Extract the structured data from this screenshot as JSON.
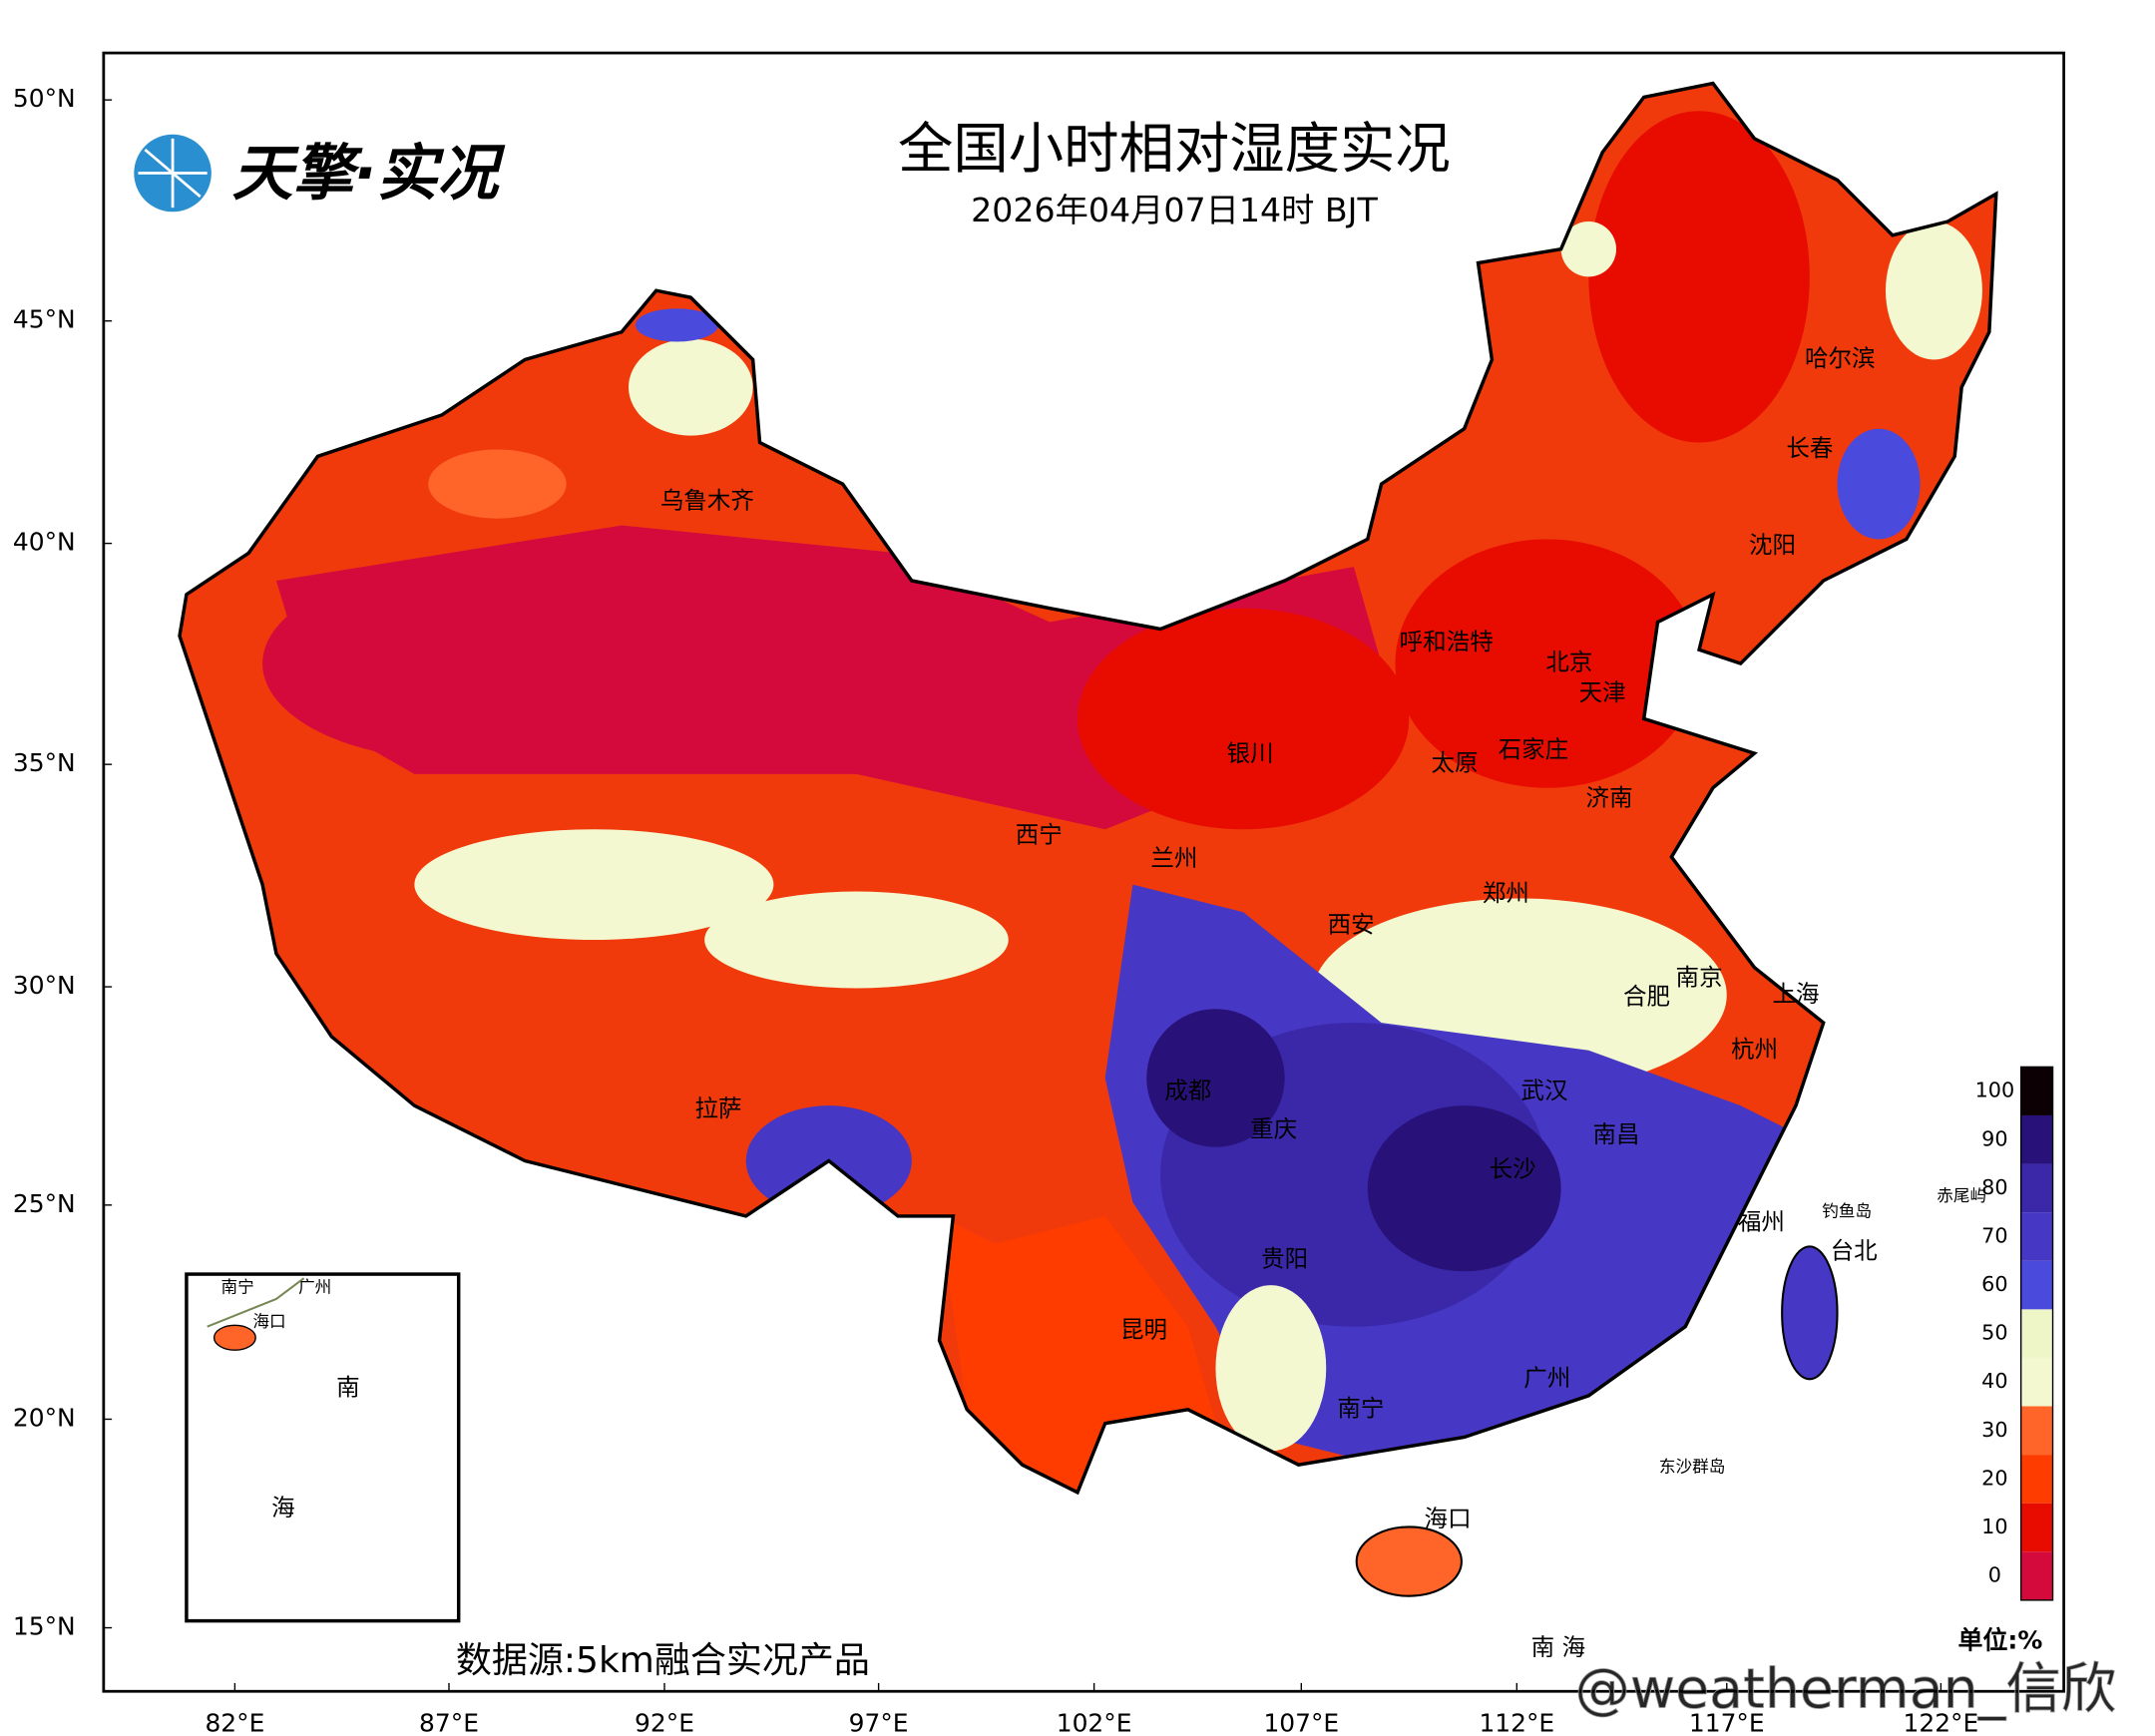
{
  "header": {
    "logo": "天擎·实况",
    "title": "全国小时相对湿度实况",
    "subtitle": "2026年04月07日14时 BJT"
  },
  "axes": {
    "lat_labels": [
      "50°N",
      "45°N",
      "40°N",
      "35°N",
      "30°N",
      "25°N",
      "20°N",
      "15°N"
    ],
    "lon_labels": [
      "82°E",
      "87°E",
      "92°E",
      "97°E",
      "102°E",
      "107°E",
      "112°E",
      "117°E",
      "122°E"
    ]
  },
  "cities": [
    "乌鲁木齐",
    "呼和浩特",
    "北京",
    "天津",
    "石家庄",
    "太原",
    "银川",
    "济南",
    "西宁",
    "兰州",
    "郑州",
    "西安",
    "南京",
    "合肥",
    "上海",
    "杭州",
    "武汉",
    "成都",
    "重庆",
    "南昌",
    "长沙",
    "拉萨",
    "福州",
    "台北",
    "贵阳",
    "昆明",
    "广州",
    "南宁",
    "海口",
    "哈尔滨",
    "长春",
    "沈阳"
  ],
  "islands": [
    "钓鱼岛",
    "赤尾屿",
    "东沙群岛",
    "南 海"
  ],
  "inset": [
    "南宁",
    "广州",
    "海口",
    "南",
    "海"
  ],
  "colorbar": {
    "ticks": [
      0,
      10,
      20,
      30,
      40,
      50,
      60,
      70,
      80,
      90,
      100
    ],
    "colors": [
      "#d40a3c",
      "#e80c00",
      "#ff3c00",
      "#ff6428",
      "#f4f8d0",
      "#eef6c8",
      "#4a4adc",
      "#4638c4",
      "#3a28a8",
      "#28127a",
      "#0c0004"
    ],
    "unit": "单位:%"
  },
  "source": "数据源:5km融合实况产品",
  "watermark": "@weatherman_信欣"
}
